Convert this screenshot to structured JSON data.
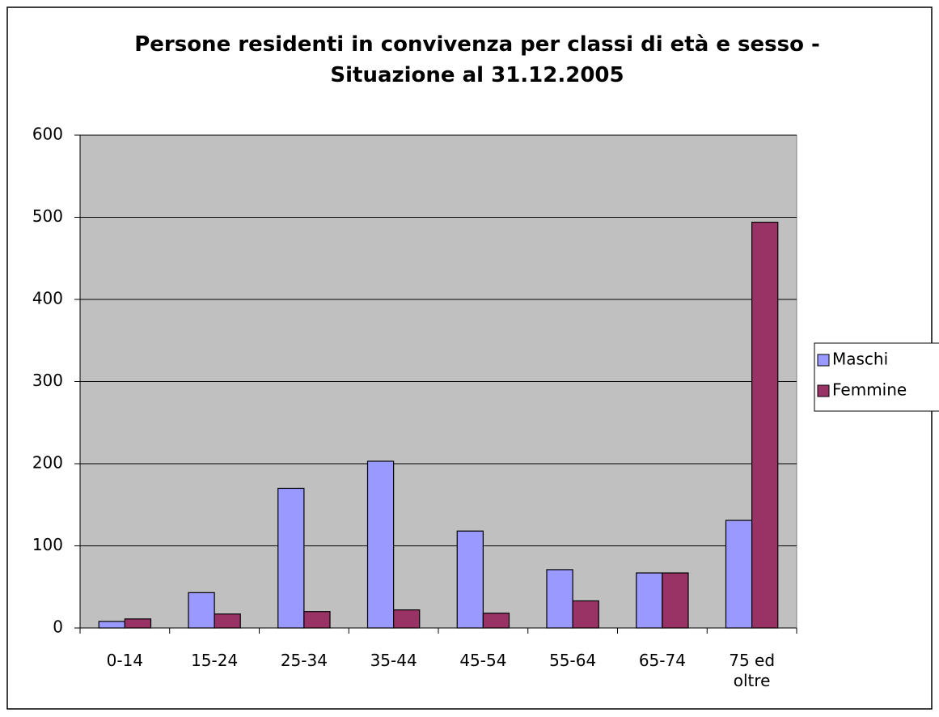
{
  "chart_data": {
    "type": "bar",
    "title": "Persone residenti in convivenza per classi di età e sesso - Situazione al 31.12.2005",
    "categories": [
      "0-14",
      "15-24",
      "25-34",
      "35-44",
      "45-54",
      "55-64",
      "65-74",
      "75 ed oltre"
    ],
    "series": [
      {
        "name": "Maschi",
        "color": "#9999ff",
        "values": [
          8,
          43,
          170,
          203,
          118,
          71,
          67,
          131
        ]
      },
      {
        "name": "Femmine",
        "color": "#993366",
        "values": [
          11,
          17,
          20,
          22,
          18,
          33,
          67,
          494
        ]
      }
    ],
    "ylim": [
      0,
      600
    ],
    "yticks": [
      0,
      100,
      200,
      300,
      400,
      500,
      600
    ],
    "grid": true,
    "plot_background": "#c0c0c0",
    "legend": "right"
  }
}
